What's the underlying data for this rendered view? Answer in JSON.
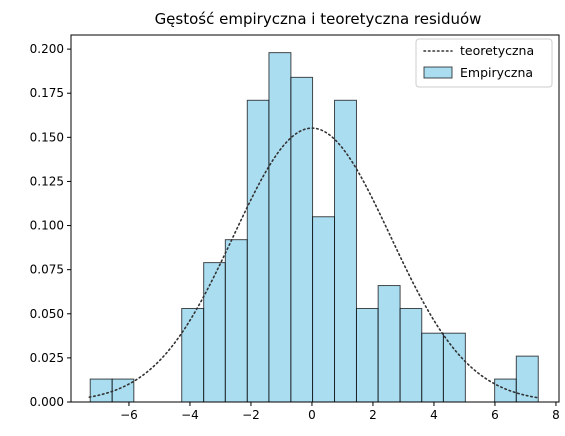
{
  "chart_data": {
    "type": "histogram",
    "title": "Gęstość empiryczna i teoretyczna residuów",
    "xlabel": "",
    "ylabel": "",
    "xlim": [
      -7.9,
      8.1
    ],
    "ylim": [
      0,
      0.208
    ],
    "x_ticks": [
      -6,
      -4,
      -2,
      0,
      2,
      4,
      6,
      8
    ],
    "y_ticks": [
      0.0,
      0.025,
      0.05,
      0.075,
      0.1,
      0.125,
      0.15,
      0.175,
      0.2
    ],
    "y_tick_labels": [
      "0.000",
      "0.025",
      "0.050",
      "0.075",
      "0.100",
      "0.125",
      "0.150",
      "0.175",
      "0.200"
    ],
    "grid": false,
    "legend_position": "top-right",
    "series": [
      {
        "name": "Empiryczna",
        "type": "bar",
        "color": "#87ceeb",
        "edge_color": "#000000",
        "opacity": 0.7,
        "bins": [
          {
            "x0": -7.27,
            "x1": -6.55,
            "density": 0.013
          },
          {
            "x0": -6.55,
            "x1": -5.84,
            "density": 0.013
          },
          {
            "x0": -4.27,
            "x1": -3.55,
            "density": 0.053
          },
          {
            "x0": -3.55,
            "x1": -2.84,
            "density": 0.079
          },
          {
            "x0": -2.84,
            "x1": -2.12,
            "density": 0.092
          },
          {
            "x0": -2.12,
            "x1": -1.41,
            "density": 0.171
          },
          {
            "x0": -1.41,
            "x1": -0.69,
            "density": 0.198
          },
          {
            "x0": -0.69,
            "x1": 0.02,
            "density": 0.184
          },
          {
            "x0": 0.02,
            "x1": 0.74,
            "density": 0.105
          },
          {
            "x0": 0.74,
            "x1": 1.46,
            "density": 0.171
          },
          {
            "x0": 1.46,
            "x1": 2.17,
            "density": 0.053
          },
          {
            "x0": 2.17,
            "x1": 2.89,
            "density": 0.066
          },
          {
            "x0": 2.89,
            "x1": 3.6,
            "density": 0.053
          },
          {
            "x0": 3.6,
            "x1": 4.31,
            "density": 0.039
          },
          {
            "x0": 4.31,
            "x1": 5.03,
            "density": 0.039
          },
          {
            "x0": 5.99,
            "x1": 6.7,
            "density": 0.013
          },
          {
            "x0": 6.7,
            "x1": 7.42,
            "density": 0.026
          }
        ]
      },
      {
        "name": "teoretyczna",
        "type": "line",
        "style": "dotted",
        "color": "#333333",
        "distribution": "normal",
        "mean": 0,
        "sd": 2.57,
        "x_range": [
          -7.3,
          7.45
        ]
      }
    ]
  }
}
